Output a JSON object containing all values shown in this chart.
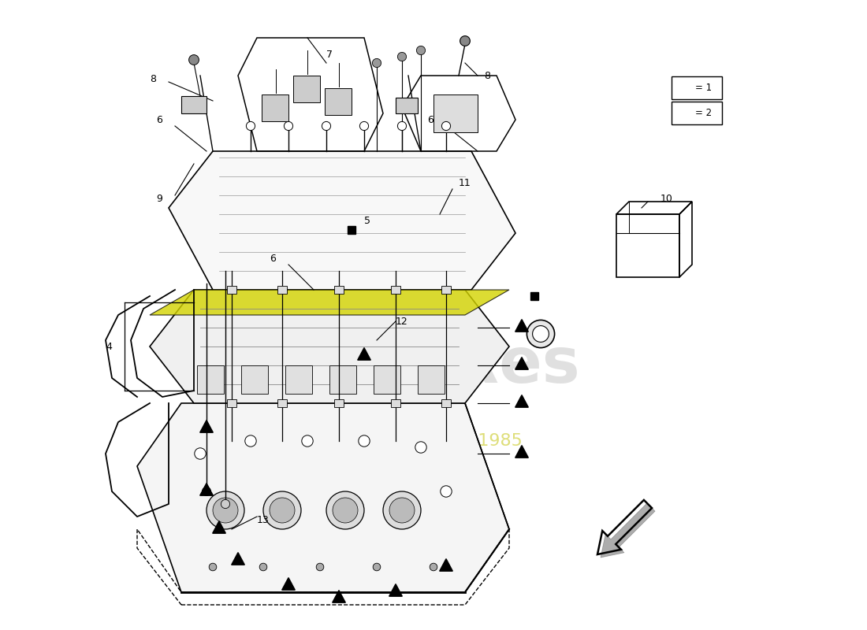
{
  "background_color": "#ffffff",
  "watermark_color": "#d4d0c8",
  "accent_color": "#c8c800",
  "line_color": "#000000"
}
